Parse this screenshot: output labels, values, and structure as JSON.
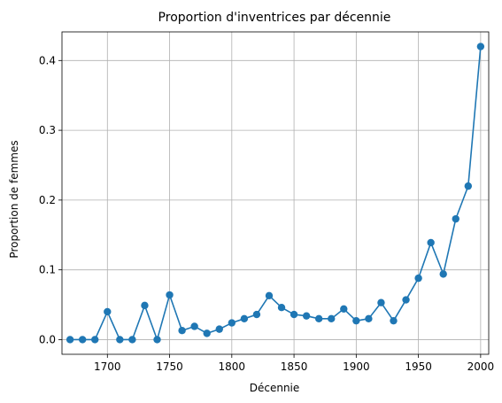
{
  "chart_data": {
    "type": "line",
    "title": "Proportion d'inventrices par décennie",
    "xlabel": "Décennie",
    "ylabel": "Proportion de femmes",
    "xlim": [
      1663.5,
      2006.5
    ],
    "ylim": [
      -0.021,
      0.441
    ],
    "grid": true,
    "x_ticks": [
      1700,
      1750,
      1800,
      1850,
      1900,
      1950,
      2000
    ],
    "y_ticks": [
      0.0,
      0.1,
      0.2,
      0.3,
      0.4
    ],
    "series": [
      {
        "color": "#1f77b4",
        "marker": "circle",
        "x": [
          1670,
          1680,
          1690,
          1700,
          1710,
          1720,
          1730,
          1740,
          1750,
          1760,
          1770,
          1780,
          1790,
          1800,
          1810,
          1820,
          1830,
          1840,
          1850,
          1860,
          1870,
          1880,
          1890,
          1900,
          1910,
          1920,
          1930,
          1940,
          1950,
          1960,
          1970,
          1980,
          1990,
          2000
        ],
        "y": [
          0.0,
          0.0,
          0.0,
          0.04,
          0.0,
          0.0,
          0.049,
          0.0,
          0.064,
          0.013,
          0.019,
          0.009,
          0.015,
          0.024,
          0.03,
          0.036,
          0.063,
          0.046,
          0.036,
          0.034,
          0.03,
          0.03,
          0.044,
          0.027,
          0.03,
          0.053,
          0.027,
          0.057,
          0.088,
          0.139,
          0.094,
          0.173,
          0.22,
          0.42
        ]
      }
    ]
  }
}
